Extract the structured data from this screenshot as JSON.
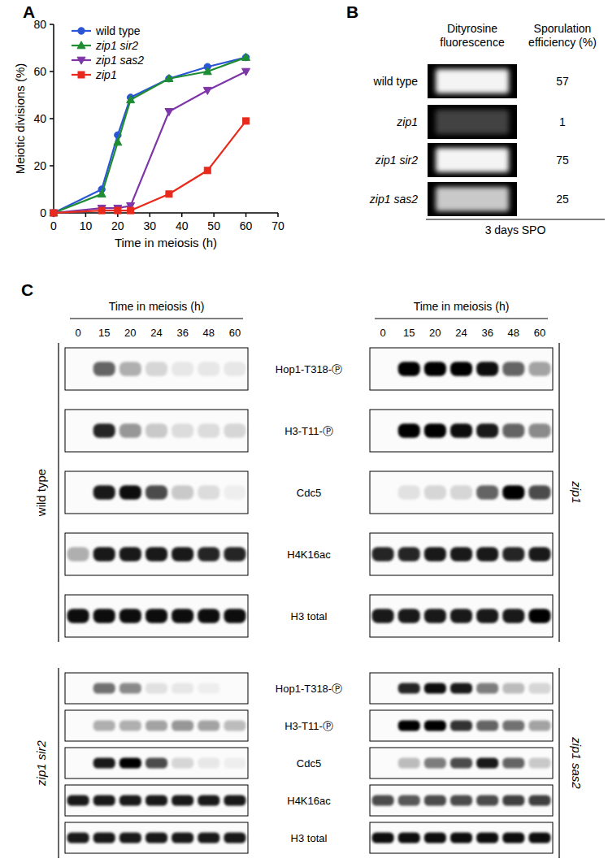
{
  "panel_labels": [
    "A",
    "B",
    "C"
  ],
  "chart_data": {
    "type": "line",
    "x_label": "Time in meiosis (h)",
    "y_label": "Meiotic divisions (%)",
    "x": [
      0,
      15,
      20,
      24,
      36,
      48,
      60
    ],
    "series": [
      {
        "name": "wild type",
        "color": "#2b55d6",
        "marker": "circle",
        "values": [
          0,
          10,
          33,
          49,
          57,
          62,
          66
        ]
      },
      {
        "name": "zip1 sir2",
        "color": "#1e8c32",
        "marker": "triangle-up",
        "values": [
          0,
          8,
          30,
          48,
          57,
          60,
          66
        ]
      },
      {
        "name": "zip1 sas2",
        "color": "#7d35a8",
        "marker": "triangle-down",
        "values": [
          0,
          2,
          2,
          3,
          43,
          52,
          60
        ]
      },
      {
        "name": "zip1",
        "color": "#e8291c",
        "marker": "square",
        "values": [
          0,
          1,
          1,
          1,
          8,
          18,
          39
        ]
      }
    ],
    "xlim": [
      0,
      70
    ],
    "ylim": [
      0,
      80
    ],
    "xticks": [
      0,
      10,
      20,
      30,
      40,
      50,
      60,
      70
    ],
    "yticks": [
      0,
      20,
      40,
      60,
      80
    ],
    "legend": "top-left"
  },
  "panel_b": {
    "headers": [
      [
        "Dityrosine",
        "fluorescence"
      ],
      [
        "Sporulation",
        "efficiency (%)"
      ]
    ],
    "rows": [
      {
        "label": "wild type",
        "fluorescence": 0.95,
        "sporulation_efficiency": 57
      },
      {
        "label": "zip1",
        "fluorescence": 0.12,
        "sporulation_efficiency": 1
      },
      {
        "label": "zip1 sir2",
        "fluorescence": 0.95,
        "sporulation_efficiency": 75
      },
      {
        "label": "zip1 sas2",
        "fluorescence": 0.75,
        "sporulation_efficiency": 25
      }
    ],
    "footer": "3 days SPO"
  },
  "panel_c": {
    "time_label": "Time in meiosis (h)",
    "times": [
      0,
      15,
      20,
      24,
      36,
      48,
      60
    ],
    "proteins": [
      "Hop1-T318-Ⓟ",
      "H3-T11-Ⓟ",
      "Cdc5",
      "H4K16ac",
      "H3 total"
    ],
    "groups": [
      {
        "strain": "wild type",
        "bands": [
          [
            0,
            0.6,
            0.3,
            0.15,
            0.08,
            0.08,
            0.08
          ],
          [
            0,
            0.85,
            0.4,
            0.2,
            0.12,
            0.12,
            0.15
          ],
          [
            0,
            0.9,
            0.95,
            0.7,
            0.2,
            0.12,
            0.05
          ],
          [
            0.3,
            0.9,
            0.9,
            0.9,
            0.9,
            0.85,
            0.85
          ],
          [
            0.95,
            0.95,
            0.95,
            0.95,
            0.95,
            0.95,
            0.95
          ]
        ]
      },
      {
        "strain": "zip1",
        "bands": [
          [
            0,
            1,
            1,
            1,
            0.95,
            0.6,
            0.35
          ],
          [
            0,
            1,
            1,
            0.95,
            0.9,
            0.6,
            0.45
          ],
          [
            0,
            0.1,
            0.15,
            0.15,
            0.6,
            1,
            0.7
          ],
          [
            0.85,
            0.85,
            0.9,
            0.9,
            0.9,
            0.85,
            0.9
          ],
          [
            0.9,
            0.9,
            0.9,
            0.9,
            0.9,
            0.9,
            1
          ]
        ]
      },
      {
        "strain": "zip1 sir2",
        "bands": [
          [
            0,
            0.55,
            0.45,
            0.1,
            0.08,
            0.05,
            0
          ],
          [
            0,
            0.3,
            0.3,
            0.35,
            0.4,
            0.35,
            0.25
          ],
          [
            0,
            0.9,
            1,
            0.7,
            0.15,
            0.08,
            0.05
          ],
          [
            0.9,
            0.9,
            0.9,
            0.9,
            0.9,
            0.9,
            0.9
          ],
          [
            0.9,
            0.9,
            0.9,
            0.9,
            0.9,
            0.9,
            0.9
          ]
        ]
      },
      {
        "strain": "zip1 sas2",
        "bands": [
          [
            0,
            0.85,
            0.95,
            0.9,
            0.5,
            0.25,
            0.15
          ],
          [
            0,
            1,
            1,
            0.8,
            0.6,
            0.55,
            0.35
          ],
          [
            0,
            0.25,
            0.5,
            0.7,
            0.9,
            0.6,
            0.2
          ],
          [
            0.7,
            0.65,
            0.7,
            0.7,
            0.7,
            0.75,
            0.75
          ],
          [
            0.95,
            0.95,
            0.95,
            0.95,
            0.95,
            0.95,
            0.95
          ]
        ]
      }
    ]
  }
}
